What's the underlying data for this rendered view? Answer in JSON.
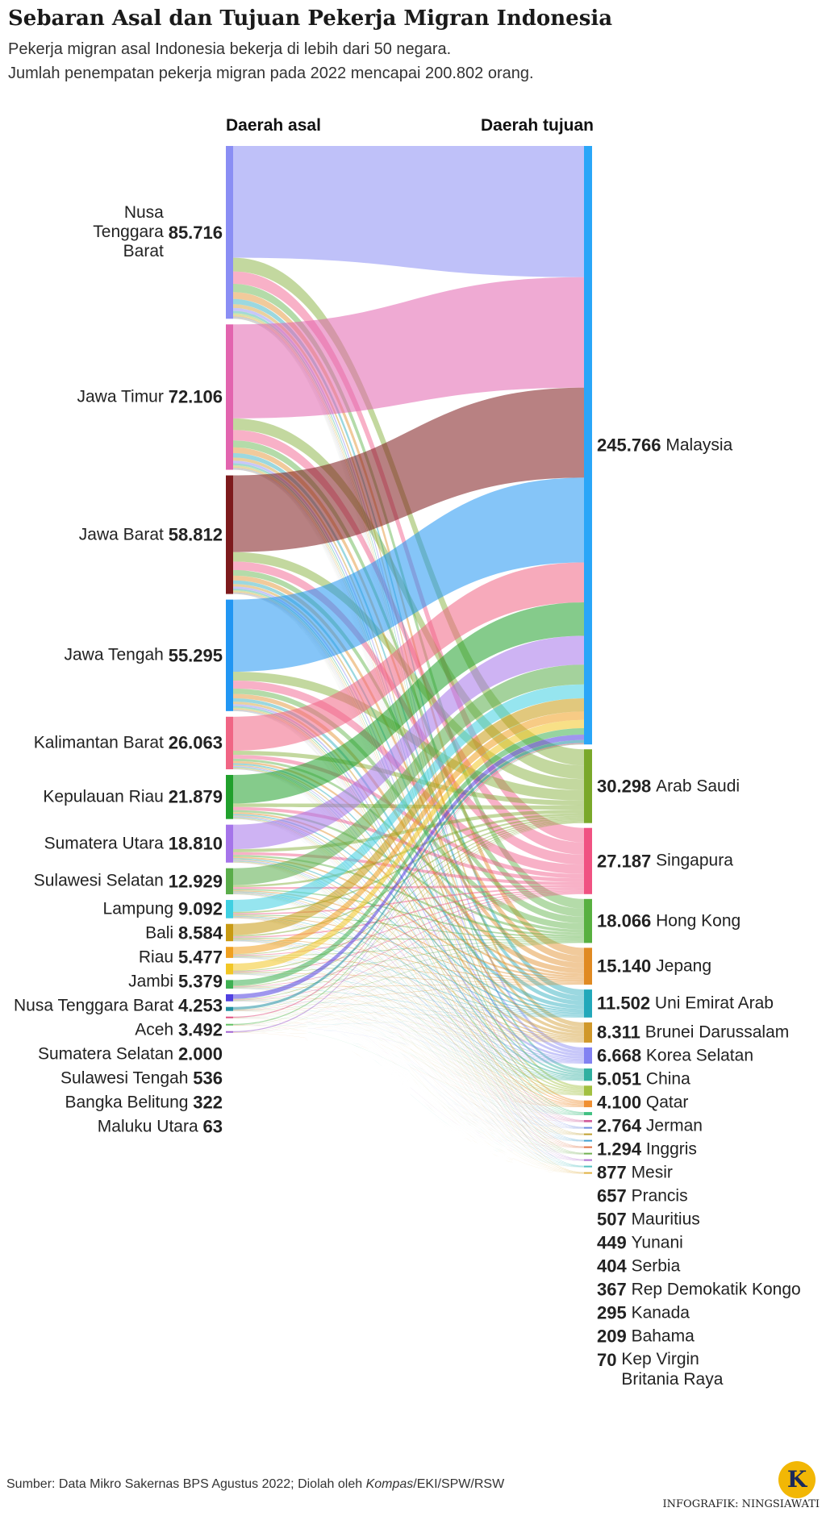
{
  "chart_data": {
    "type": "sankey",
    "title": "Sebaran Asal dan Tujuan Pekerja Migran Indonesia",
    "subtitle": [
      "Pekerja migran asal Indonesia bekerja di lebih dari 50 negara.",
      "Jumlah penempatan pekerja migran pada 2022 mencapai 200.802 orang."
    ],
    "source_header": "Daerah asal",
    "target_header": "Daerah tujuan",
    "sources": [
      {
        "name": "Nusa Tenggara Barat",
        "value": 85716,
        "value_label": "85.716",
        "color": "#8a8ef4"
      },
      {
        "name": "Jawa Timur",
        "value": 72106,
        "value_label": "72.106",
        "color": "#e264ae"
      },
      {
        "name": "Jawa Barat",
        "value": 58812,
        "value_label": "58.812",
        "color": "#7d1a1c"
      },
      {
        "name": "Jawa Tengah",
        "value": 55295,
        "value_label": "55.295",
        "color": "#2196f3"
      },
      {
        "name": "Kalimantan Barat",
        "value": 26063,
        "value_label": "26.063",
        "color": "#f06584"
      },
      {
        "name": "Kepulauan Riau",
        "value": 21879,
        "value_label": "21.879",
        "color": "#20a02c"
      },
      {
        "name": "Sumatera Utara",
        "value": 18810,
        "value_label": "18.810",
        "color": "#a574ea"
      },
      {
        "name": "Sulawesi Selatan",
        "value": 12929,
        "value_label": "12.929",
        "color": "#5aad4a"
      },
      {
        "name": "Lampung",
        "value": 9092,
        "value_label": "9.092",
        "color": "#3fd0e2"
      },
      {
        "name": "Bali",
        "value": 8584,
        "value_label": "8.584",
        "color": "#c89a12"
      },
      {
        "name": "Riau",
        "value": 5477,
        "value_label": "5.477",
        "color": "#f0a020"
      },
      {
        "name": "Jambi",
        "value": 5379,
        "value_label": "5.379",
        "color": "#f2c624"
      },
      {
        "name": "Nusa Tenggara Barat",
        "value": 4253,
        "value_label": "4.253",
        "color": "#3fb052"
      },
      {
        "name": "Aceh",
        "value": 3492,
        "value_label": "3.492",
        "color": "#5040e0"
      },
      {
        "name": "Sumatera Selatan",
        "value": 2000,
        "value_label": "2.000",
        "color": "#2090a2"
      },
      {
        "name": "Sulawesi Tengah",
        "value": 536,
        "value_label": "536",
        "color": "#e05080"
      },
      {
        "name": "Bangka Belitung",
        "value": 322,
        "value_label": "322",
        "color": "#62c062"
      },
      {
        "name": "Maluku Utara",
        "value": 63,
        "value_label": "63",
        "color": "#a060d0"
      }
    ],
    "targets": [
      {
        "name": "Malaysia",
        "value": 245766,
        "value_label": "245.766",
        "color": "#2aa6f8"
      },
      {
        "name": "Arab Saudi",
        "value": 30298,
        "value_label": "30.298",
        "color": "#7aa82a"
      },
      {
        "name": "Singapura",
        "value": 27187,
        "value_label": "27.187",
        "color": "#f05282"
      },
      {
        "name": "Hong Kong",
        "value": 18066,
        "value_label": "18.066",
        "color": "#58b040"
      },
      {
        "name": "Jepang",
        "value": 15140,
        "value_label": "15.140",
        "color": "#e08a22"
      },
      {
        "name": "Uni Emirat Arab",
        "value": 11502,
        "value_label": "11.502",
        "color": "#22a8ba"
      },
      {
        "name": "Brunei Darussalam",
        "value": 8311,
        "value_label": "8.311",
        "color": "#d0982a"
      },
      {
        "name": "Korea Selatan",
        "value": 6668,
        "value_label": "6.668",
        "color": "#8282f2"
      },
      {
        "name": "China",
        "value": 5051,
        "value_label": "5.051",
        "color": "#30b0a0"
      },
      {
        "name": "Qatar",
        "value": 4100,
        "value_label": "4.100",
        "color": "#a2c040"
      },
      {
        "name": "Jerman",
        "value": 2764,
        "value_label": "2.764",
        "color": "#f09032"
      },
      {
        "name": "Inggris",
        "value": 1294,
        "value_label": "1.294",
        "color": "#40c082"
      },
      {
        "name": "Mesir",
        "value": 877,
        "value_label": "877",
        "color": "#d05a9a"
      },
      {
        "name": "Prancis",
        "value": 657,
        "value_label": "657",
        "color": "#6a8ae0"
      },
      {
        "name": "Mauritius",
        "value": 507,
        "value_label": "507",
        "color": "#c0a030"
      },
      {
        "name": "Yunani",
        "value": 449,
        "value_label": "449",
        "color": "#40a0d0"
      },
      {
        "name": "Serbia",
        "value": 404,
        "value_label": "404",
        "color": "#e07040"
      },
      {
        "name": "Rep Demokatik Kongo",
        "value": 367,
        "value_label": "367",
        "color": "#70b050"
      },
      {
        "name": "Kanada",
        "value": 295,
        "value_label": "295",
        "color": "#b070d0"
      },
      {
        "name": "Bahama",
        "value": 209,
        "value_label": "209",
        "color": "#50c0c0"
      },
      {
        "name": "Kep Virgin Britania Raya",
        "value": 70,
        "value_label": "70",
        "color": "#e0b040"
      }
    ],
    "note_prefix": "Sumber: Data Mikro Sakernas BPS Agustus 2022; Diolah oleh ",
    "note_italic": "Kompas",
    "note_suffix": "/EKI/SPW/RSW",
    "credit": "INFOGRAFIK: NINGSIAWATI",
    "logo": "K"
  }
}
